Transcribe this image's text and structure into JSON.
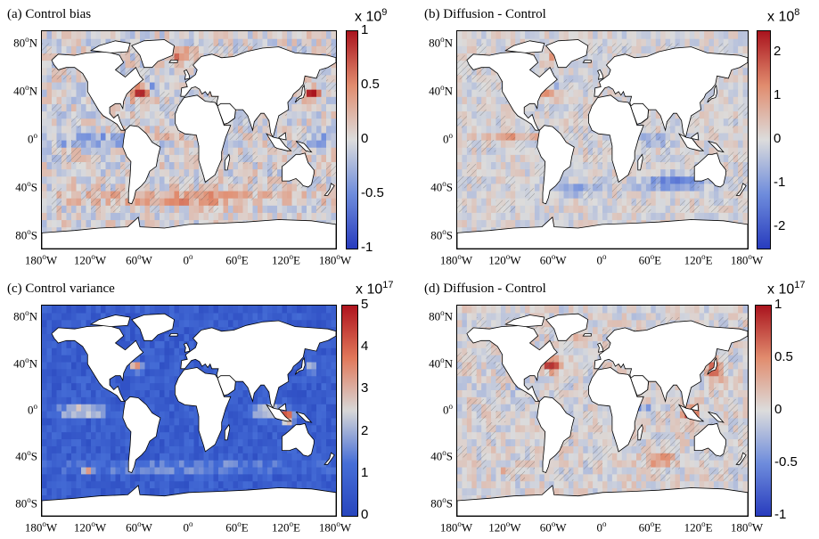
{
  "chart_data": [
    {
      "type": "heatmap",
      "title": "(a) Control bias",
      "colormap": "blue-white-red",
      "colorbar_exponent": "x 10",
      "colorbar_power": "9",
      "colorbar_range": [
        -1,
        1
      ],
      "colorbar_ticks": [
        "1",
        "0.5",
        "0",
        "-0.5",
        "-1"
      ],
      "x_ticks": [
        "180",
        "120",
        "60",
        "0",
        "60",
        "120",
        "180"
      ],
      "x_tick_suffix": [
        "W",
        "W",
        "W",
        "",
        "E",
        "E",
        "W"
      ],
      "y_ticks": [
        "80",
        "40",
        "0",
        "40",
        "80"
      ],
      "y_tick_suffix": [
        "N",
        "N",
        "",
        "S",
        "S"
      ],
      "hatching": true
    },
    {
      "type": "heatmap",
      "title": "(b) Diffusion - Control",
      "colormap": "blue-white-red",
      "colorbar_exponent": "x 10",
      "colorbar_power": "8",
      "colorbar_range": [
        -2.5,
        2.5
      ],
      "colorbar_ticks": [
        "2",
        "1",
        "0",
        "-1",
        "-2"
      ],
      "x_ticks": [
        "180",
        "120",
        "60",
        "0",
        "60",
        "120",
        "180"
      ],
      "x_tick_suffix": [
        "W",
        "W",
        "W",
        "",
        "E",
        "E",
        "W"
      ],
      "y_ticks": [
        "80",
        "40",
        "0",
        "40",
        "80"
      ],
      "y_tick_suffix": [
        "N",
        "N",
        "",
        "S",
        "S"
      ],
      "hatching": true
    },
    {
      "type": "heatmap",
      "title": "(c) Control variance",
      "colormap": "blue-white-red",
      "colorbar_exponent": "x 10",
      "colorbar_power": "17",
      "colorbar_range": [
        0,
        5
      ],
      "colorbar_ticks": [
        "5",
        "4",
        "3",
        "2",
        "1",
        "0"
      ],
      "x_ticks": [
        "180",
        "120",
        "60",
        "0",
        "60",
        "120",
        "180"
      ],
      "x_tick_suffix": [
        "W",
        "W",
        "W",
        "",
        "E",
        "E",
        "W"
      ],
      "y_ticks": [
        "80",
        "40",
        "0",
        "40",
        "80"
      ],
      "y_tick_suffix": [
        "N",
        "N",
        "",
        "S",
        "S"
      ],
      "hatching": false
    },
    {
      "type": "heatmap",
      "title": "(d) Diffusion - Control",
      "colormap": "blue-white-red",
      "colorbar_exponent": "x 10",
      "colorbar_power": "17",
      "colorbar_range": [
        -1,
        1
      ],
      "colorbar_ticks": [
        "1",
        "0.5",
        "0",
        "-0.5",
        "-1"
      ],
      "x_ticks": [
        "180",
        "120",
        "60",
        "0",
        "60",
        "120",
        "180"
      ],
      "x_tick_suffix": [
        "W",
        "W",
        "W",
        "",
        "E",
        "E",
        "W"
      ],
      "y_ticks": [
        "80",
        "40",
        "0",
        "40",
        "80"
      ],
      "y_tick_suffix": [
        "N",
        "N",
        "",
        "S",
        "S"
      ],
      "hatching": true
    }
  ],
  "colors": {
    "ocean_neutral": "#d9d9d9",
    "ocean_low": "#3b57c6",
    "land": "#ffffff",
    "red_high": "#b2182b",
    "blue_low": "#2c4fc4"
  }
}
